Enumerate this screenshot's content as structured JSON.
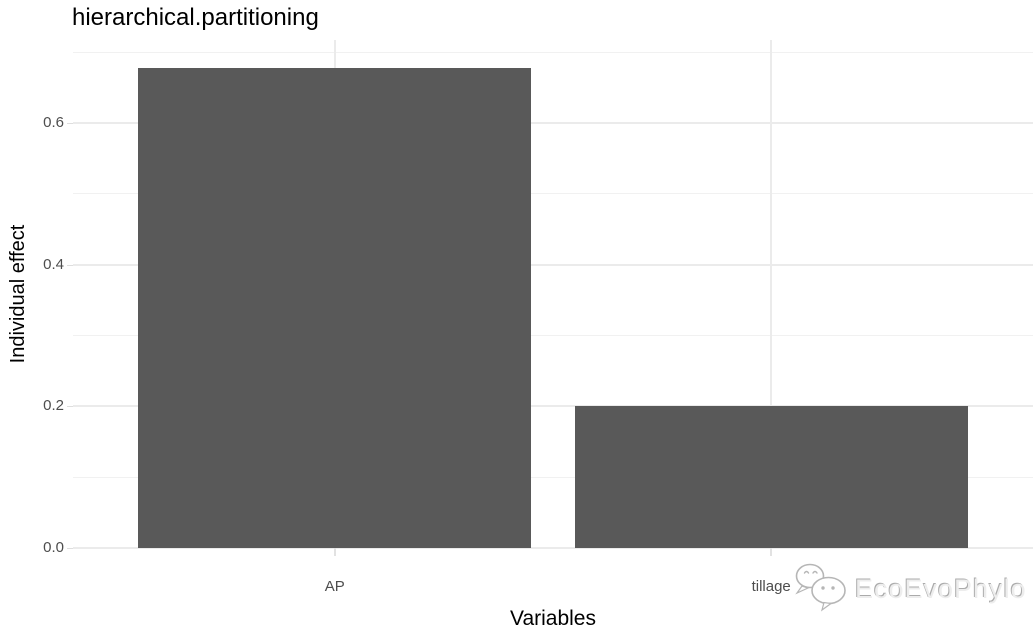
{
  "chart_data": {
    "type": "bar",
    "title": "hierarchical.partitioning",
    "categories": [
      "AP",
      "tillage"
    ],
    "values": [
      0.678,
      0.201
    ],
    "xlabel": "Variables",
    "ylabel": "Individual effect",
    "ylim": [
      0,
      0.717
    ],
    "y_ticks_major": [
      0.0,
      0.2,
      0.4,
      0.6
    ],
    "y_ticks_minor": [
      0.1,
      0.3,
      0.5,
      0.7
    ],
    "grid": "horizontal major+minor, vertical at category centers",
    "legend": "none",
    "bar_color": "#595959",
    "bar_width_fraction": 0.9
  },
  "colors": {
    "background": "#ffffff",
    "bar": "#595959",
    "grid_major": "#ebebeb",
    "grid_minor": "#f1f1f1",
    "tick_mark": "#dedede",
    "axis_text": "#4d4d4d",
    "title_text": "#000000"
  },
  "watermark": {
    "text": "EcoEvoPhylo",
    "icon": "wechat-chat-bubbles-icon"
  }
}
